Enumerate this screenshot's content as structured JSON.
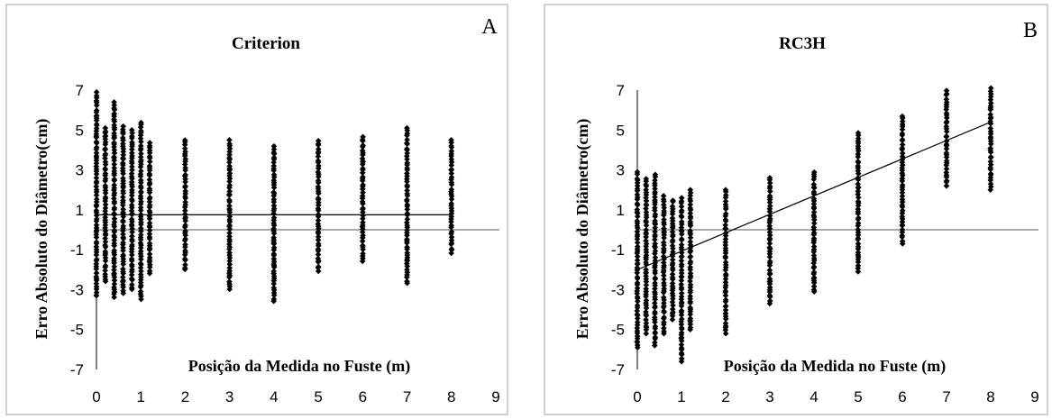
{
  "chart_data": [
    {
      "type": "scatter",
      "panel_letter": "A",
      "title": "Criterion",
      "xlabel": "Posição da Medida no Fuste (m)",
      "ylabel": "Erro Absoluto do Diâmetro(cm)",
      "xlim": [
        0,
        9
      ],
      "ylim": [
        -7,
        7
      ],
      "x_ticks": [
        "0",
        "1",
        "2",
        "3",
        "4",
        "5",
        "6",
        "7",
        "8",
        "9"
      ],
      "y_ticks": [
        "7",
        "5",
        "3",
        "1",
        "-1",
        "-3",
        "-5",
        "-7"
      ],
      "grid": false,
      "marker": "diamond",
      "marker_color": "#000000",
      "reference_line_y": 0,
      "trend_line": {
        "x": [
          0,
          8
        ],
        "y": [
          0.75,
          0.75
        ]
      },
      "columns": [
        {
          "x": 0.0,
          "y_min": -3.3,
          "y_max": 6.9,
          "outliers": [
            5.7,
            4.8,
            -3.3
          ]
        },
        {
          "x": 0.2,
          "y_min": -2.6,
          "y_max": 5.1,
          "outliers": [
            4.7
          ]
        },
        {
          "x": 0.4,
          "y_min": -3.4,
          "y_max": 6.4,
          "outliers": [
            5.8,
            4.6
          ]
        },
        {
          "x": 0.6,
          "y_min": -3.2,
          "y_max": 5.2,
          "outliers": [
            4.9
          ]
        },
        {
          "x": 0.8,
          "y_min": -3.0,
          "y_max": 5.0,
          "outliers": []
        },
        {
          "x": 1.0,
          "y_min": -3.5,
          "y_max": 5.4,
          "outliers": []
        },
        {
          "x": 1.2,
          "y_min": -2.2,
          "y_max": 4.4,
          "outliers": []
        },
        {
          "x": 2.0,
          "y_min": -2.0,
          "y_max": 4.5,
          "outliers": []
        },
        {
          "x": 3.0,
          "y_min": -3.0,
          "y_max": 4.5,
          "outliers": [
            -2.3
          ]
        },
        {
          "x": 4.0,
          "y_min": -3.6,
          "y_max": 4.2,
          "outliers": [
            -1.8
          ]
        },
        {
          "x": 5.0,
          "y_min": -2.1,
          "y_max": 4.5,
          "outliers": []
        },
        {
          "x": 6.0,
          "y_min": -1.6,
          "y_max": 4.7,
          "outliers": [
            3.4
          ]
        },
        {
          "x": 7.0,
          "y_min": -2.7,
          "y_max": 5.1,
          "outliers": [
            -1.5
          ]
        },
        {
          "x": 8.0,
          "y_min": -1.2,
          "y_max": 4.5,
          "outliers": []
        }
      ]
    },
    {
      "type": "scatter",
      "panel_letter": "B",
      "title": "RC3H",
      "xlabel": "Posição da Medida no Fuste (m)",
      "ylabel": "Erro Absoluto do Diâmetro(cm)",
      "xlim": [
        0,
        9
      ],
      "ylim": [
        -7,
        7
      ],
      "x_ticks": [
        "0",
        "1",
        "2",
        "3",
        "4",
        "5",
        "6",
        "7",
        "8",
        "9"
      ],
      "y_ticks": [
        "7",
        "5",
        "3",
        "1",
        "-1",
        "-3",
        "-5",
        "-7"
      ],
      "grid": false,
      "marker": "diamond",
      "marker_color": "#000000",
      "reference_line_y": 0,
      "trend_line": {
        "x": [
          0,
          8
        ],
        "y": [
          -2.0,
          5.4
        ]
      },
      "columns": [
        {
          "x": 0.0,
          "y_min": -5.9,
          "y_max": 2.9,
          "outliers": [
            -5.6
          ]
        },
        {
          "x": 0.2,
          "y_min": -5.2,
          "y_max": 2.6,
          "outliers": []
        },
        {
          "x": 0.4,
          "y_min": -5.8,
          "y_max": 2.8,
          "outliers": []
        },
        {
          "x": 0.6,
          "y_min": -5.2,
          "y_max": 1.7,
          "outliers": []
        },
        {
          "x": 0.8,
          "y_min": -4.5,
          "y_max": 1.5,
          "outliers": []
        },
        {
          "x": 1.0,
          "y_min": -6.6,
          "y_max": 1.6,
          "outliers": [
            -5.4,
            -6.0
          ]
        },
        {
          "x": 1.2,
          "y_min": -5.0,
          "y_max": 2.0,
          "outliers": [
            -4.6
          ]
        },
        {
          "x": 2.0,
          "y_min": -5.2,
          "y_max": 2.0,
          "outliers": [
            -4.2
          ]
        },
        {
          "x": 3.0,
          "y_min": -3.7,
          "y_max": 2.6,
          "outliers": [
            -2.6
          ]
        },
        {
          "x": 4.0,
          "y_min": -3.1,
          "y_max": 2.9,
          "outliers": [
            -2.4
          ]
        },
        {
          "x": 5.0,
          "y_min": -2.1,
          "y_max": 4.9,
          "outliers": []
        },
        {
          "x": 6.0,
          "y_min": -0.7,
          "y_max": 5.7,
          "outliers": [
            0.4
          ]
        },
        {
          "x": 7.0,
          "y_min": 2.2,
          "y_max": 7.0,
          "outliers": []
        },
        {
          "x": 8.0,
          "y_min": 2.0,
          "y_max": 7.1,
          "outliers": []
        }
      ]
    }
  ]
}
